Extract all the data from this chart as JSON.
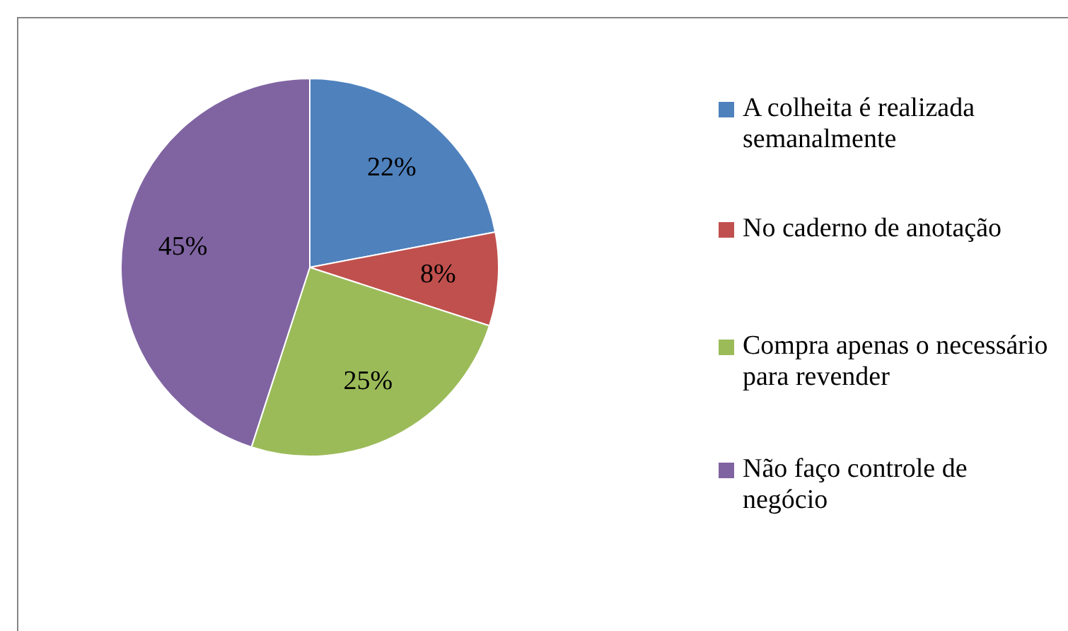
{
  "chart_data": {
    "type": "pie",
    "categories": [
      "A colheita é realizada semanalmente",
      "No caderno de anotação",
      "Compra apenas o necessário para revender",
      "Não faço controle de negócio"
    ],
    "values": [
      22,
      8,
      25,
      45
    ],
    "colors": [
      "#4f81bd",
      "#c0504d",
      "#9bbb59",
      "#8064a2"
    ],
    "value_labels": [
      "22%",
      "8%",
      "25%",
      "45%"
    ],
    "legend": "right"
  }
}
